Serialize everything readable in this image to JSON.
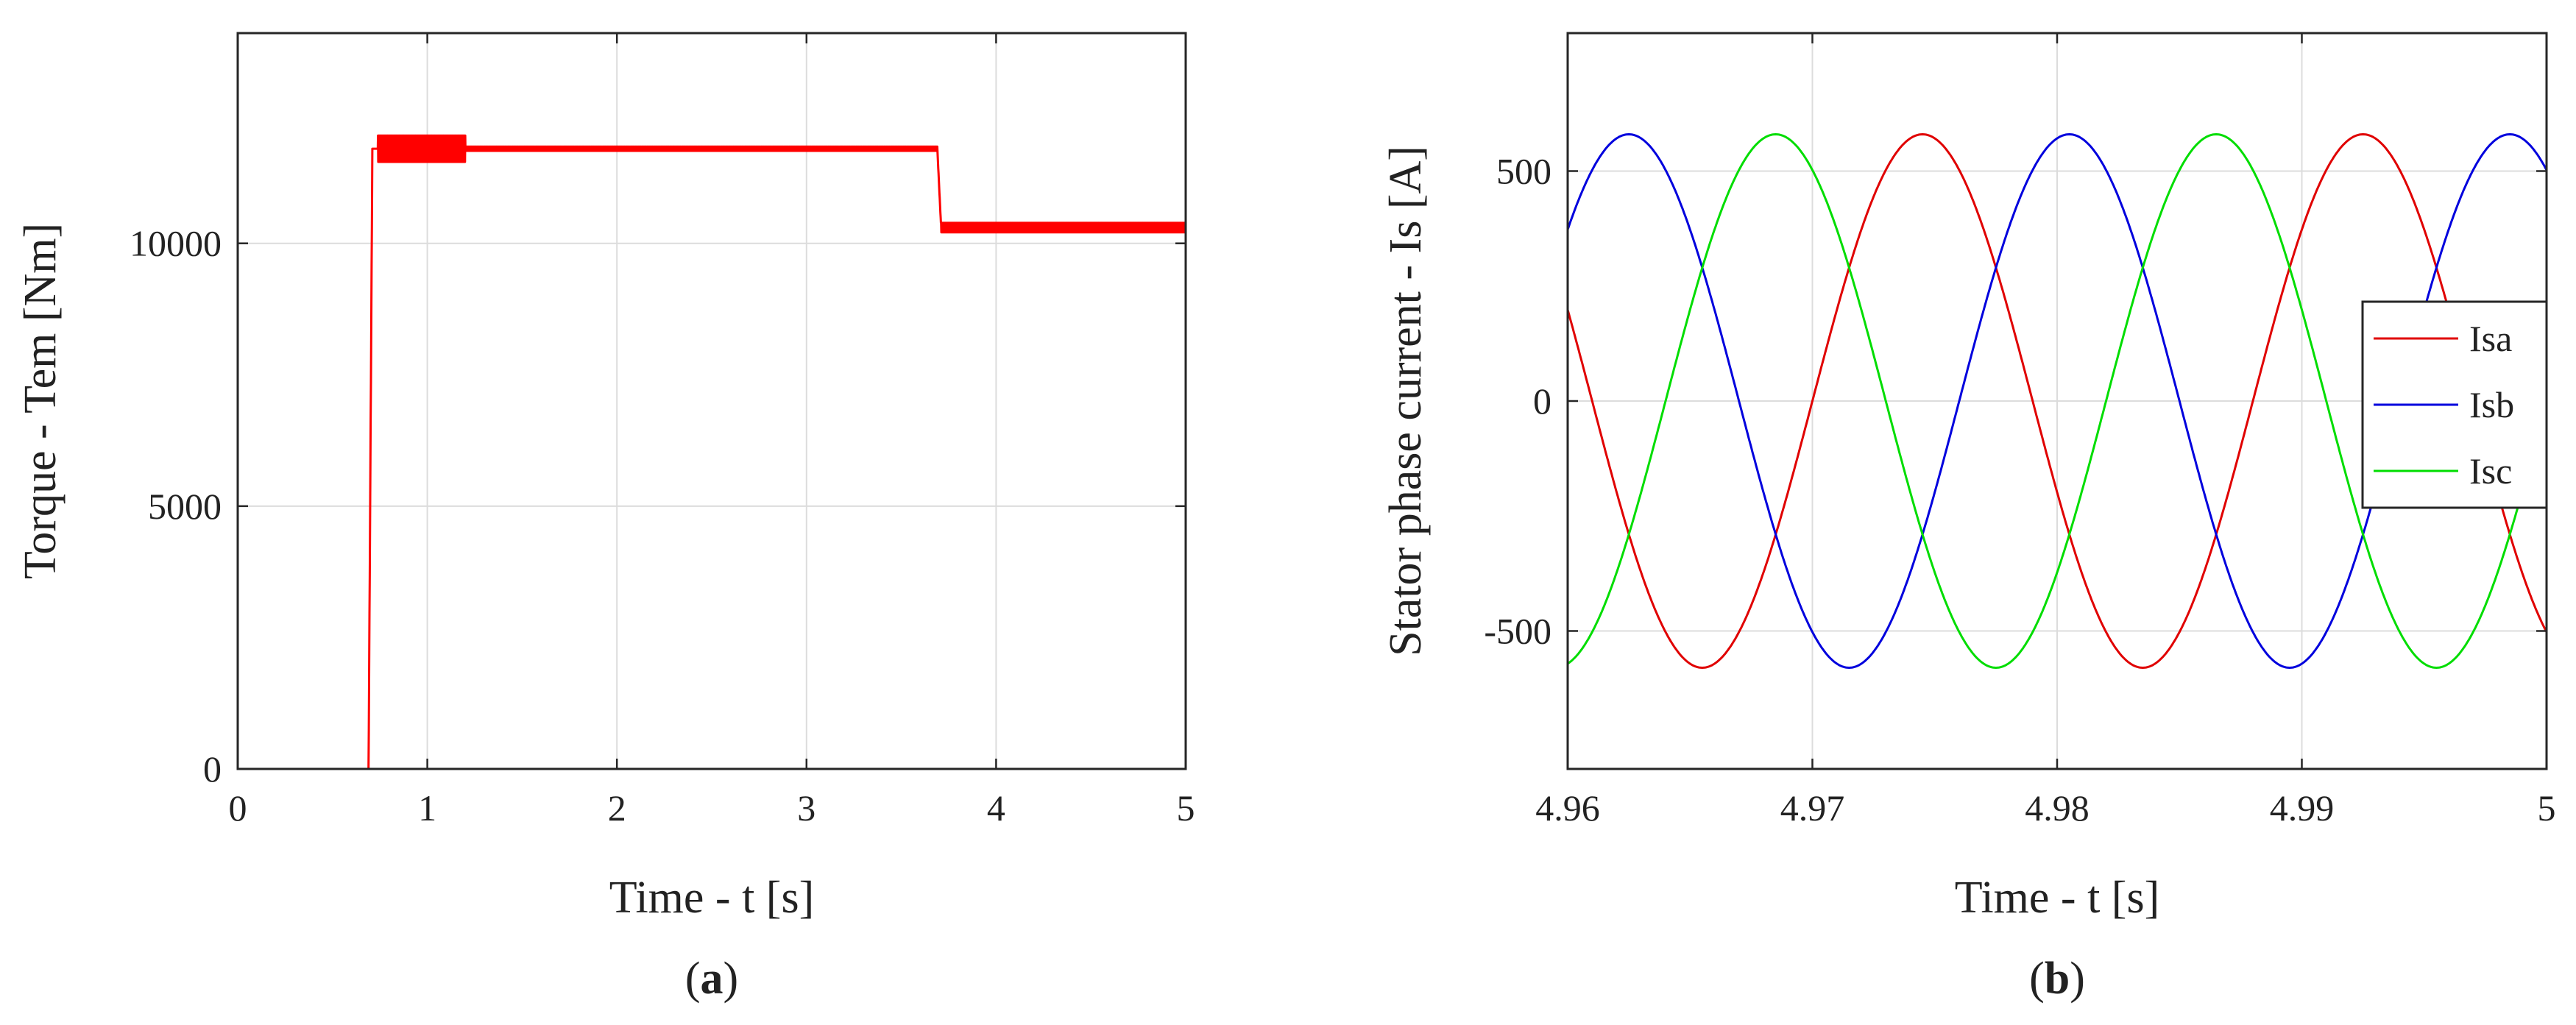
{
  "chart_data": [
    {
      "type": "line",
      "xlabel": "Time - t [s]",
      "ylabel": "Torque - Tem [Nm]",
      "xlim": [
        0,
        5
      ],
      "ylim": [
        0,
        14000
      ],
      "xticks": [
        "0",
        "1",
        "2",
        "3",
        "4",
        "5"
      ],
      "yticks": [
        "0",
        "5000",
        "10000"
      ],
      "grid": true,
      "caption_letter": "a",
      "series": [
        {
          "color": "#ff0000",
          "x": [
            0,
            0.69,
            0.71,
            0.75,
            1.2,
            3.69,
            3.71,
            5.0
          ],
          "y": [
            0,
            0,
            11800,
            11800,
            11800,
            11800,
            10300,
            10300
          ],
          "ripple": [
            {
              "from": 0.74,
              "to": 1.2,
              "amp": 250
            },
            {
              "from": 1.2,
              "to": 3.69,
              "amp": 40
            },
            {
              "from": 3.71,
              "to": 5.0,
              "amp": 90
            }
          ]
        }
      ]
    },
    {
      "type": "line",
      "xlabel": "Time - t [s]",
      "ylabel": "Stator phase current - Is [A]",
      "xlim": [
        4.96,
        5.0
      ],
      "ylim": [
        -800,
        800
      ],
      "xticks": [
        "4.96",
        "4.97",
        "4.98",
        "4.99",
        "5"
      ],
      "yticks": [
        "-500",
        "0",
        "500"
      ],
      "grid": true,
      "legend_position": "right",
      "caption_letter": "b",
      "series": [
        {
          "name": "Isa",
          "color": "#e00000",
          "amplitude": 580,
          "peak_time": 4.9745,
          "period": 0.018
        },
        {
          "name": "Isb",
          "color": "#0000dd",
          "amplitude": 580,
          "peak_time": 4.9625,
          "period": 0.018
        },
        {
          "name": "Isc",
          "color": "#00dd00",
          "amplitude": 580,
          "peak_time": 4.9685,
          "period": 0.018
        }
      ]
    }
  ]
}
